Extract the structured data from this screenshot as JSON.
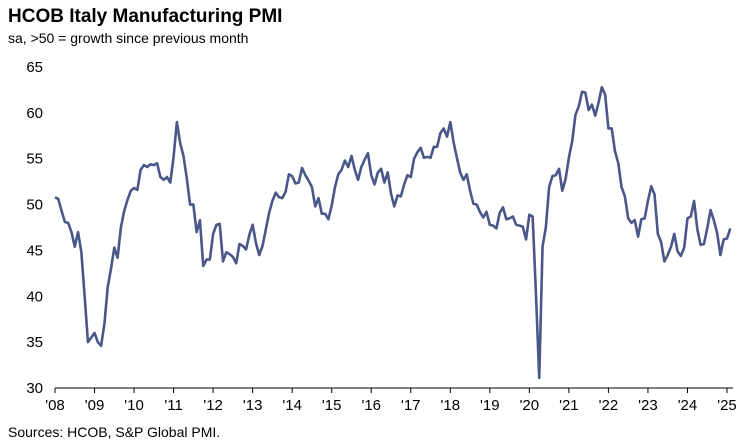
{
  "chart_data": {
    "type": "line",
    "title": "HCOB Italy Manufacturing PMI",
    "subtitle": "sa, >50 = growth since previous month",
    "source": "Sources: HCOB, S&P Global PMI.",
    "categories": [
      "'08",
      null,
      null,
      null,
      null,
      null,
      null,
      null,
      null,
      null,
      null,
      null,
      "'09",
      null,
      null,
      null,
      null,
      null,
      null,
      null,
      null,
      null,
      null,
      null,
      "'10",
      null,
      null,
      null,
      null,
      null,
      null,
      null,
      null,
      null,
      null,
      null,
      "'11",
      null,
      null,
      null,
      null,
      null,
      null,
      null,
      null,
      null,
      null,
      null,
      "'12",
      null,
      null,
      null,
      null,
      null,
      null,
      null,
      null,
      null,
      null,
      null,
      "'13",
      null,
      null,
      null,
      null,
      null,
      null,
      null,
      null,
      null,
      null,
      null,
      "'14",
      null,
      null,
      null,
      null,
      null,
      null,
      null,
      null,
      null,
      null,
      null,
      "'15",
      null,
      null,
      null,
      null,
      null,
      null,
      null,
      null,
      null,
      null,
      null,
      "'16",
      null,
      null,
      null,
      null,
      null,
      null,
      null,
      null,
      null,
      null,
      null,
      "'17",
      null,
      null,
      null,
      null,
      null,
      null,
      null,
      null,
      null,
      null,
      null,
      "'18",
      null,
      null,
      null,
      null,
      null,
      null,
      null,
      null,
      null,
      null,
      null,
      "'19",
      null,
      null,
      null,
      null,
      null,
      null,
      null,
      null,
      null,
      null,
      null,
      "'20",
      null,
      null,
      null,
      null,
      null,
      null,
      null,
      null,
      null,
      null,
      null,
      "'21",
      null,
      null,
      null,
      null,
      null,
      null,
      null,
      null,
      null,
      null,
      null,
      "'22",
      null,
      null,
      null,
      null,
      null,
      null,
      null,
      null,
      null,
      null,
      null,
      "'23",
      null,
      null,
      null,
      null,
      null,
      null,
      null,
      null,
      null,
      null,
      null,
      "'24",
      null,
      null,
      null,
      null,
      null,
      null,
      null,
      null,
      null,
      null,
      null,
      "'25",
      null
    ],
    "series": [
      {
        "color": "#4a5788",
        "values": [
          50.8,
          50.6,
          49.3,
          48.1,
          48,
          47,
          45.4,
          47,
          44.8,
          40,
          35,
          35.5,
          36,
          35,
          34.6,
          37,
          41,
          43,
          45.3,
          44.2,
          47.5,
          49.3,
          50.5,
          51.5,
          51.8,
          51.6,
          53.8,
          54.3,
          54.1,
          54.4,
          54.3,
          54.5,
          53,
          52.7,
          53,
          52.4,
          55.2,
          59,
          56.7,
          55.3,
          52.9,
          50,
          50,
          47,
          48.3,
          43.3,
          44,
          44,
          46.8,
          47.8,
          47.9,
          43.8,
          44.8,
          44.6,
          44.3,
          43.6,
          45.7,
          45.5,
          45.1,
          46.7,
          47.8,
          45.8,
          44.5,
          45.5,
          47.3,
          49.1,
          50.4,
          51.3,
          50.8,
          50.7,
          51.4,
          53.3,
          53.1,
          52.3,
          52.4,
          54,
          53.2,
          52.6,
          51.9,
          49.8,
          50.7,
          49,
          49,
          48.4,
          49.9,
          51.9,
          53.3,
          53.8,
          54.8,
          54.1,
          55.3,
          53.8,
          52.7,
          54.1,
          54.9,
          55.6,
          53.2,
          52.2,
          53.5,
          53.9,
          52.4,
          53.5,
          51.2,
          49.8,
          51,
          50.9,
          52.2,
          53.2,
          53,
          55,
          55.7,
          56.2,
          55.1,
          55.2,
          55.1,
          56.3,
          56.3,
          57.8,
          58.3,
          57.4,
          59,
          56.8,
          55.1,
          53.5,
          52.7,
          53.3,
          51.5,
          50.1,
          50,
          49.2,
          48.6,
          49.2,
          47.8,
          47.7,
          47.4,
          49.1,
          49.7,
          48.4,
          48.5,
          48.7,
          47.8,
          47.7,
          47.6,
          46.2,
          48.9,
          48.7,
          40.3,
          31.1,
          45.4,
          47.5,
          51.9,
          53.1,
          53.2,
          53.9,
          51.5,
          52.8,
          55.1,
          56.9,
          59.8,
          60.7,
          62.3,
          62.2,
          60.3,
          60.9,
          59.7,
          61.1,
          62.8,
          62,
          58.3,
          58.3,
          55.8,
          54.5,
          51.9,
          50.9,
          48.5,
          48,
          48.3,
          46.5,
          48.4,
          48.5,
          50.4,
          52,
          51.1,
          46.8,
          45.9,
          43.8,
          44.5,
          45.4,
          46.8,
          44.9,
          44.4,
          45.3,
          48.5,
          48.7,
          50.4,
          47.3,
          45.6,
          45.7,
          47.4,
          49.4,
          48.3,
          46.9,
          44.5,
          46.2,
          46.3,
          47.4
        ]
      }
    ],
    "ylim": [
      30,
      65
    ],
    "yticks": [
      30,
      35,
      40,
      45,
      50,
      55,
      60,
      65
    ]
  }
}
